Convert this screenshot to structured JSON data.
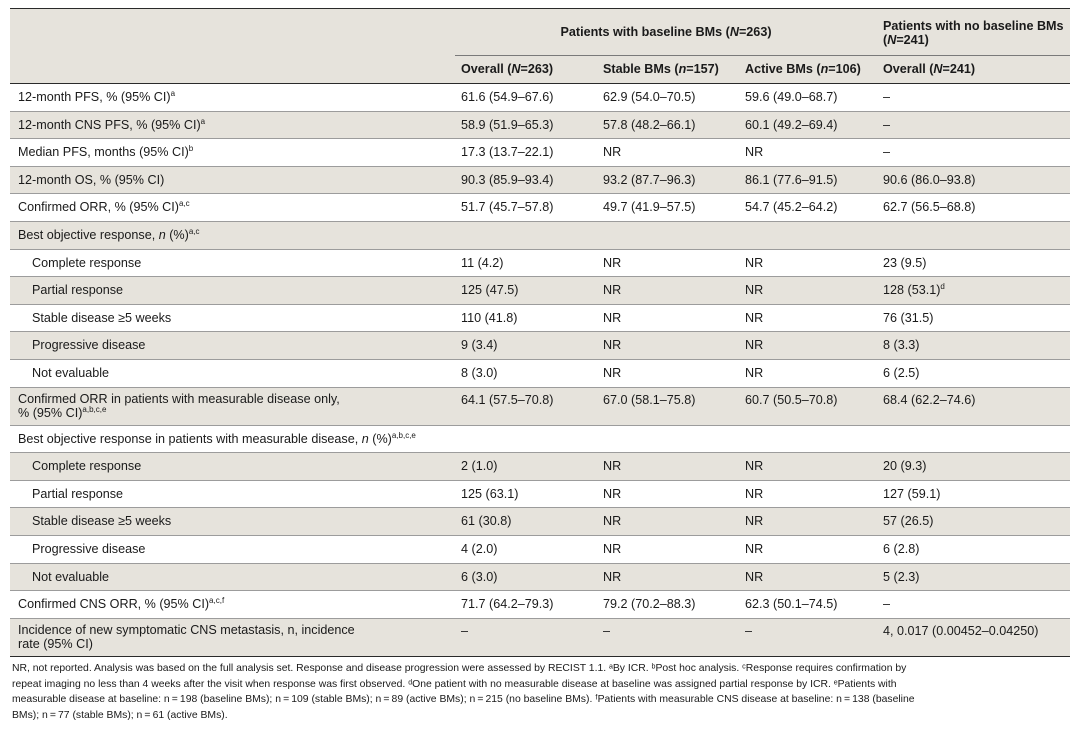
{
  "header": {
    "group_baseline": "Patients with baseline BMs (",
    "group_baseline_n": "N",
    "group_baseline_end": "=263)",
    "group_nobaseline": "Patients with no baseline BMs (",
    "group_nobaseline_n": "N",
    "group_nobaseline_end": "=241)",
    "sub": [
      {
        "pre": "Overall (",
        "it": "N",
        "post": "=263)"
      },
      {
        "pre": "Stable BMs (",
        "it": "n",
        "post": "=157)"
      },
      {
        "pre": "Active BMs (",
        "it": "n",
        "post": "=106)"
      },
      {
        "pre": "Overall (",
        "it": "N",
        "post": "=241)"
      }
    ]
  },
  "rows": [
    {
      "label": "12-month PFS, % (95% CI)",
      "sup": "a",
      "cells": [
        "61.6 (54.9–67.6)",
        "62.9 (54.0–70.5)",
        "59.6 (49.0–68.7)",
        "–"
      ]
    },
    {
      "label": "12-month CNS PFS, % (95% CI)",
      "sup": "a",
      "cells": [
        "58.9 (51.9–65.3)",
        "57.8 (48.2–66.1)",
        "60.1 (49.2–69.4)",
        "–"
      ]
    },
    {
      "label": "Median PFS, months (95% CI)",
      "sup": "b",
      "cells": [
        "17.3 (13.7–22.1)",
        "NR",
        "NR",
        "–"
      ]
    },
    {
      "label": "12-month OS, % (95% CI)",
      "sup": "",
      "cells": [
        "90.3 (85.9–93.4)",
        "93.2 (87.7–96.3)",
        "86.1 (77.6–91.5)",
        "90.6 (86.0–93.8)"
      ]
    },
    {
      "label": "Confirmed ORR, % (95% CI)",
      "sup": "a,c",
      "cells": [
        "51.7 (45.7–57.8)",
        "49.7 (41.9–57.5)",
        "54.7 (45.2–64.2)",
        "62.7 (56.5–68.8)"
      ]
    },
    {
      "label_pre": "Best objective response, ",
      "label_it": "n",
      "label_post": " (%)",
      "sup": "a,c",
      "cells": [
        "",
        "",
        "",
        ""
      ]
    },
    {
      "label": "Complete response",
      "sub": true,
      "cells": [
        "11 (4.2)",
        "NR",
        "NR",
        "23 (9.5)"
      ]
    },
    {
      "label": "Partial response",
      "sub": true,
      "cells": [
        "125 (47.5)",
        "NR",
        "NR",
        "128 (53.1)"
      ],
      "cell4_sup": "d"
    },
    {
      "label": "Stable disease ≥5 weeks",
      "sub": true,
      "cells": [
        "110 (41.8)",
        "NR",
        "NR",
        "76 (31.5)"
      ]
    },
    {
      "label": "Progressive disease",
      "sub": true,
      "cells": [
        "9 (3.4)",
        "NR",
        "NR",
        "8 (3.3)"
      ]
    },
    {
      "label": "Not evaluable",
      "sub": true,
      "cells": [
        "8 (3.0)",
        "NR",
        "NR",
        "6 (2.5)"
      ]
    },
    {
      "label_line1": "Confirmed ORR in patients with measurable disease only,",
      "label_line2": "% (95% CI)",
      "sup": "a,b,c,e",
      "cells": [
        "64.1 (57.5–70.8)",
        "67.0 (58.1–75.8)",
        "60.7 (50.5–70.8)",
        "68.4 (62.2–74.6)"
      ]
    },
    {
      "label_pre": "Best objective response in patients with measurable disease, ",
      "label_it": "n",
      "label_post": " (%)",
      "sup": "a,b,c,e",
      "cells": [
        "",
        "",
        "",
        ""
      ]
    },
    {
      "label": "Complete response",
      "sub": true,
      "cells": [
        "2 (1.0)",
        "NR",
        "NR",
        "20 (9.3)"
      ]
    },
    {
      "label": "Partial response",
      "sub": true,
      "cells": [
        "125 (63.1)",
        "NR",
        "NR",
        "127 (59.1)"
      ]
    },
    {
      "label": "Stable disease ≥5 weeks",
      "sub": true,
      "cells": [
        "61 (30.8)",
        "NR",
        "NR",
        "57 (26.5)"
      ]
    },
    {
      "label": "Progressive disease",
      "sub": true,
      "cells": [
        "4 (2.0)",
        "NR",
        "NR",
        "6 (2.8)"
      ]
    },
    {
      "label": "Not evaluable",
      "sub": true,
      "cells": [
        "6 (3.0)",
        "NR",
        "NR",
        "5 (2.3)"
      ]
    },
    {
      "label": "Confirmed CNS ORR, % (95% CI)",
      "sup": "a,c,f",
      "cells": [
        "71.7 (64.2–79.3)",
        "79.2 (70.2–88.3)",
        "62.3 (50.1–74.5)",
        "–"
      ]
    },
    {
      "label_line1": "Incidence of new symptomatic CNS metastasis, n, incidence",
      "label_line2": "rate (95% CI)",
      "sup": "",
      "cells": [
        "–",
        "–",
        "–",
        "4, 0.017 (0.00452–0.04250)"
      ]
    }
  ],
  "footnote": {
    "line1": "NR, not reported. Analysis was based on the full analysis set. Response and disease progression were assessed by RECIST 1.1. ᵃBy ICR. ᵇPost hoc analysis. ᶜResponse requires confirmation by",
    "line2": "repeat imaging no less than 4 weeks after the visit when response was first observed. ᵈOne patient with no measurable disease at baseline was assigned partial response by ICR. ᵉPatients with",
    "line3": "measurable disease at baseline: n = 198 (baseline BMs); n = 109 (stable BMs); n = 89 (active BMs); n = 215 (no baseline BMs). ᶠPatients with measurable CNS disease at baseline: n = 138 (baseline",
    "line4": "BMs); n = 77 (stable BMs); n = 61 (active BMs)."
  }
}
